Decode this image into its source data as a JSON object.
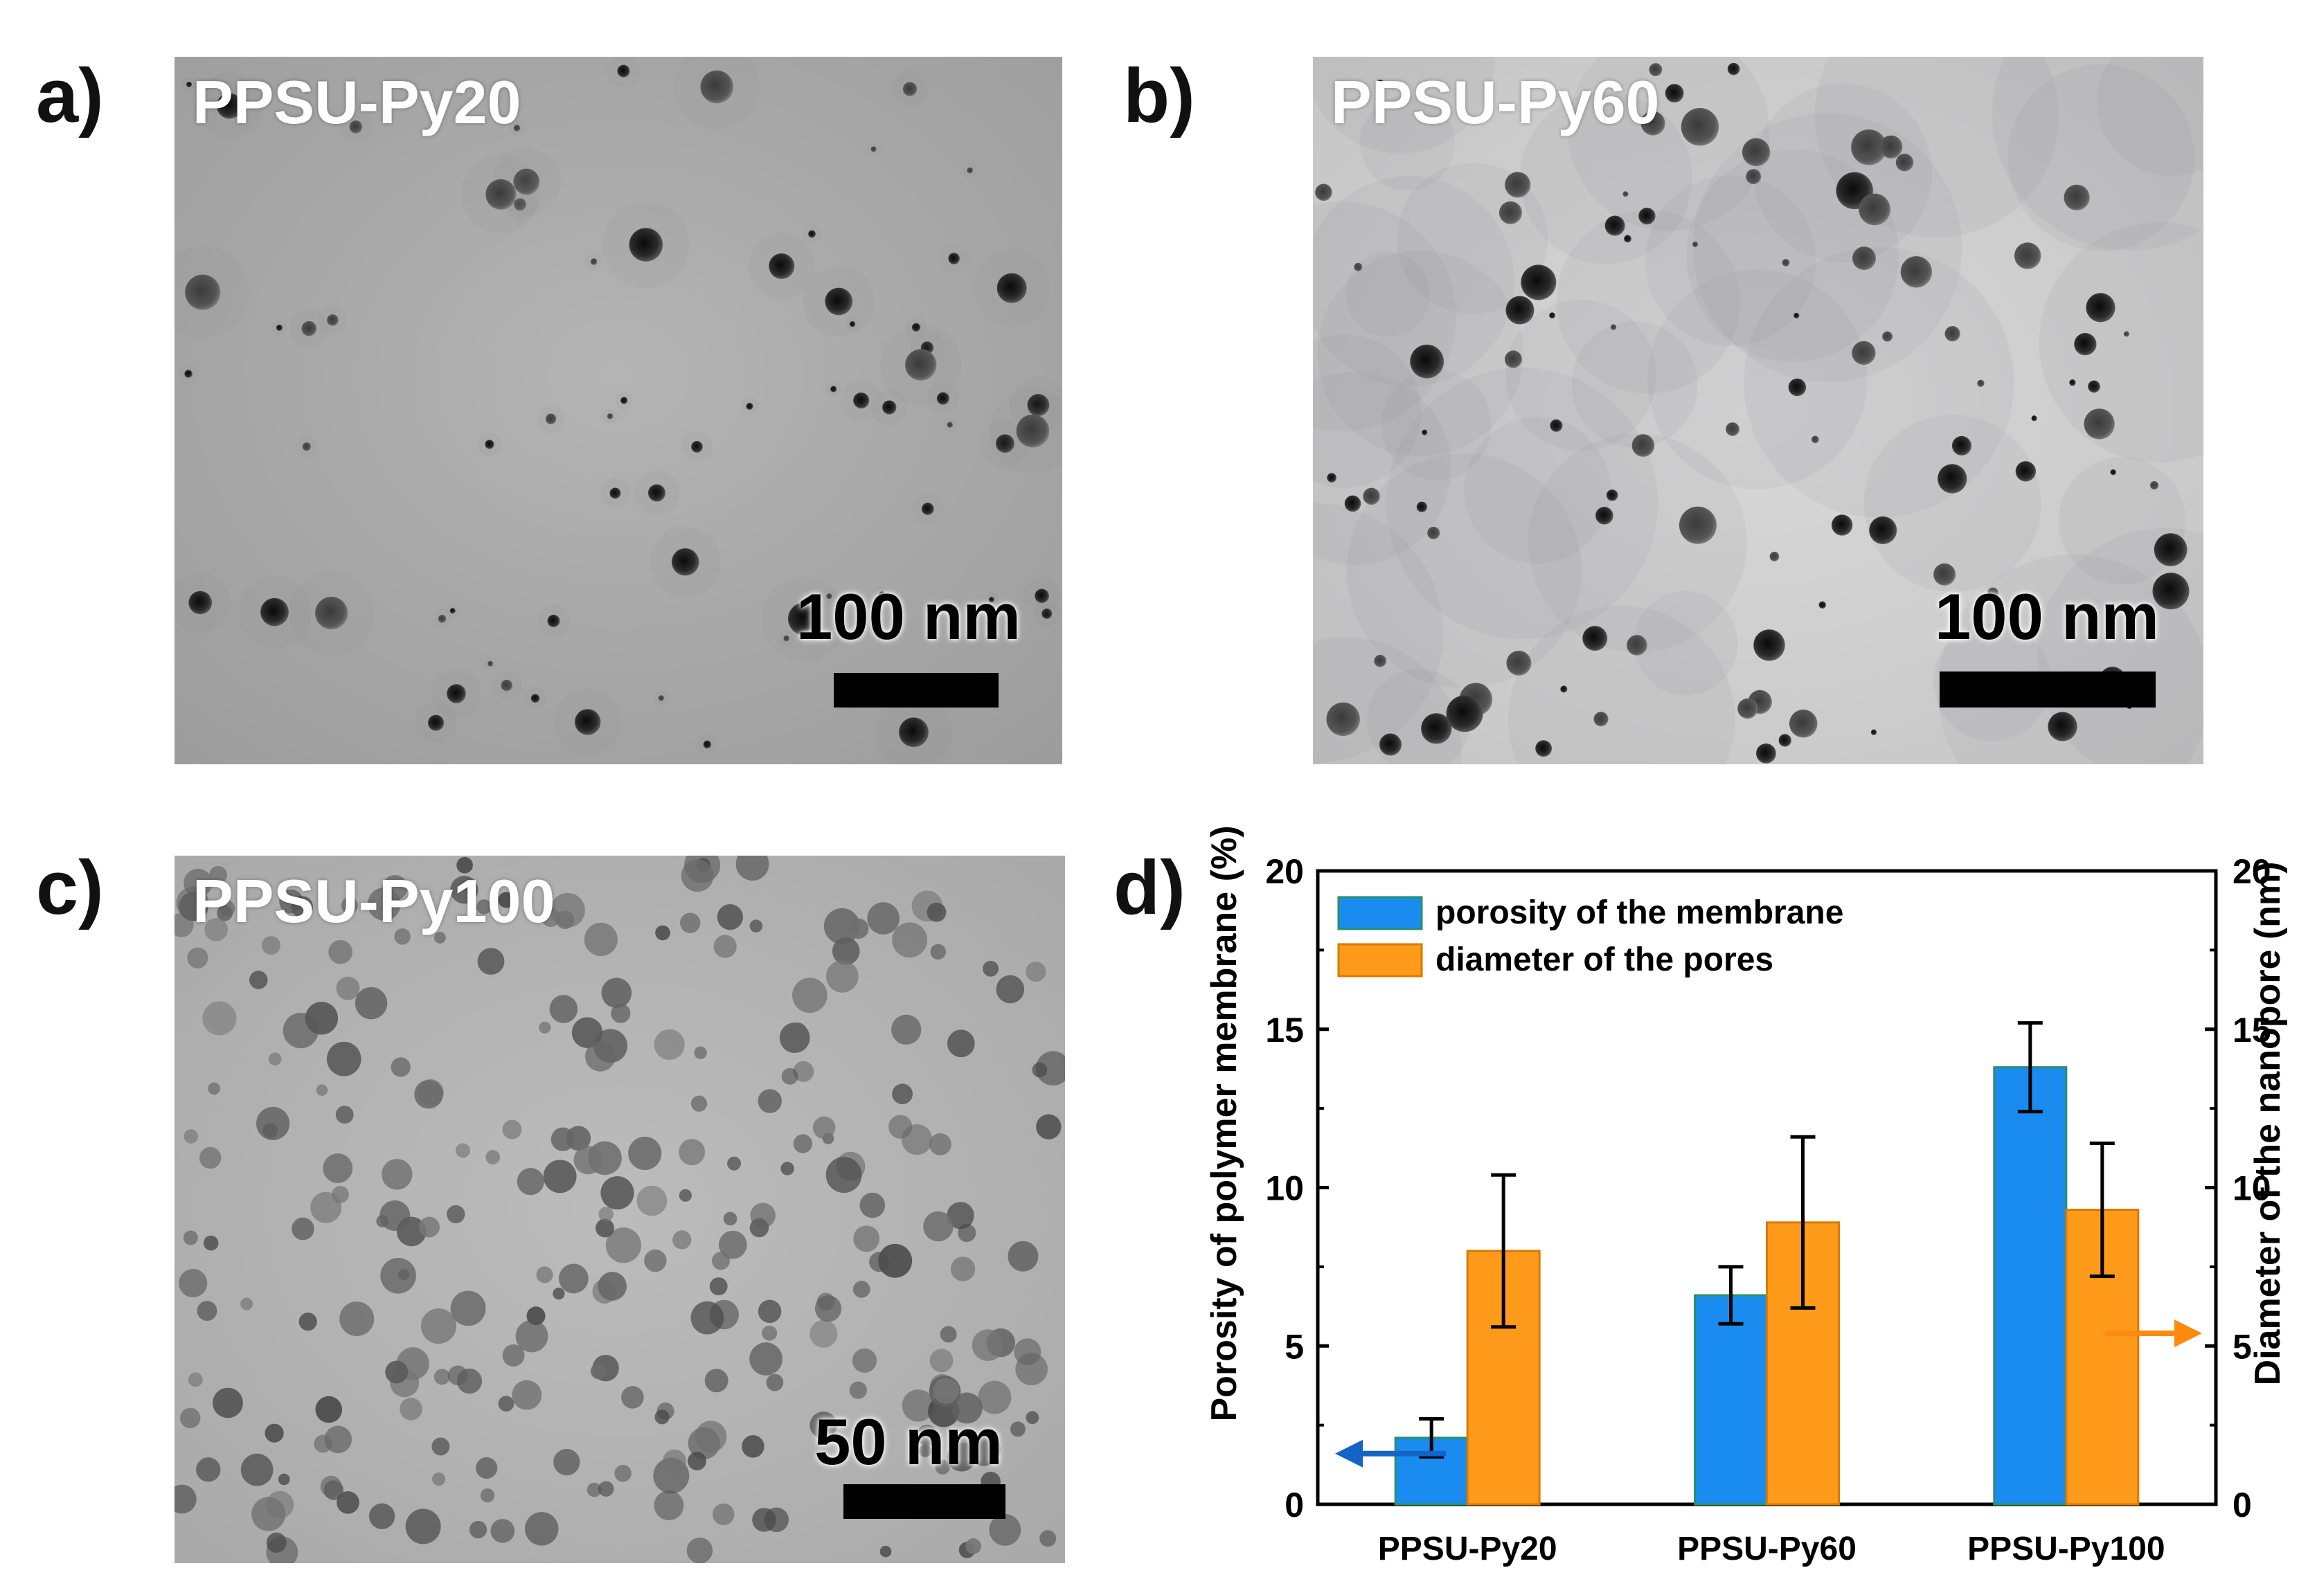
{
  "panels": [
    {
      "label": "a)",
      "sample": "PPSU-Py20",
      "scale_text": "100 nm"
    },
    {
      "label": "b)",
      "sample": "PPSU-Py60",
      "scale_text": "100 nm"
    },
    {
      "label": "c)",
      "sample": "PPSU-Py100",
      "scale_text": "50 nm"
    },
    {
      "label": "d)"
    }
  ],
  "chart_data": {
    "type": "bar",
    "categories": [
      "PPSU-Py20",
      "PPSU-Py60",
      "PPSU-Py100"
    ],
    "series": [
      {
        "name": "porosity of the membrane",
        "values": [
          2.1,
          6.6,
          13.8
        ],
        "errors": [
          0.6,
          0.9,
          1.4
        ],
        "axis": "left",
        "color": "#1a8cf0"
      },
      {
        "name": "diameter of the pores",
        "values": [
          8.0,
          8.9,
          9.3
        ],
        "errors": [
          2.4,
          2.7,
          2.1
        ],
        "axis": "right",
        "color": "#ff9a1a"
      }
    ],
    "ylabel": "Porosity of polymer membrane (%)",
    "y2label": "Diameter of the nanopore (nm)",
    "ylim": [
      0,
      20
    ],
    "y2lim": [
      0,
      20
    ],
    "yticks": [
      0,
      5,
      10,
      15,
      20
    ],
    "y2ticks": [
      0,
      5,
      10,
      15,
      20
    ],
    "legend_position": "top-left"
  }
}
